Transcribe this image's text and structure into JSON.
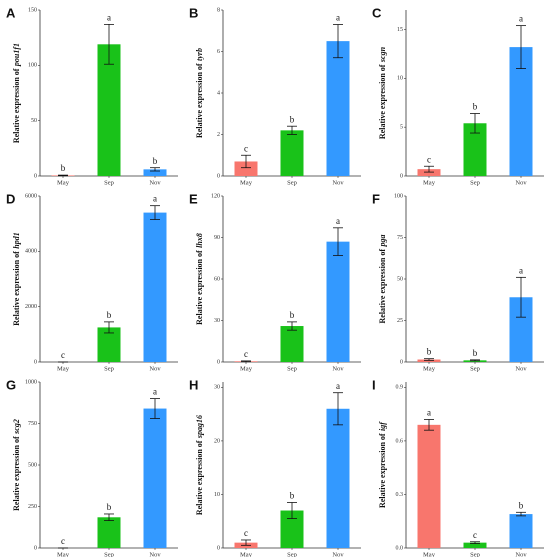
{
  "chart_data": [
    {
      "type": "bar",
      "title": "A",
      "ylabel": {
        "text": "Relative expression of",
        "gene": "pou1f1"
      },
      "categories": [
        "May",
        "Sep",
        "Nov"
      ],
      "values": [
        0.5,
        119,
        6
      ],
      "errors": [
        0.3,
        18,
        1.5
      ],
      "labels": [
        "b",
        "a",
        "b"
      ],
      "colors": [
        "#f8766d",
        "#19c219",
        "#3399ff"
      ],
      "ylim": [
        0,
        150
      ],
      "yticks": [
        0,
        50,
        100,
        150
      ]
    },
    {
      "type": "bar",
      "title": "B",
      "ylabel": {
        "text": "Relative expression of",
        "gene": "tyrb"
      },
      "categories": [
        "May",
        "Sep",
        "Nov"
      ],
      "values": [
        0.7,
        2.2,
        6.5
      ],
      "errors": [
        0.3,
        0.2,
        0.8
      ],
      "labels": [
        "c",
        "b",
        "a"
      ],
      "colors": [
        "#f8766d",
        "#19c219",
        "#3399ff"
      ],
      "ylim": [
        0,
        8
      ],
      "yticks": [
        0,
        2,
        4,
        6,
        8
      ]
    },
    {
      "type": "bar",
      "title": "C",
      "ylabel": {
        "text": "Relative expression of",
        "gene": "scgn"
      },
      "categories": [
        "May",
        "Sep",
        "Nov"
      ],
      "values": [
        0.7,
        5.4,
        13.2
      ],
      "errors": [
        0.3,
        1.0,
        2.2
      ],
      "labels": [
        "c",
        "b",
        "a"
      ],
      "colors": [
        "#f8766d",
        "#19c219",
        "#3399ff"
      ],
      "ylim": [
        0,
        17
      ],
      "yticks": [
        0,
        5,
        10,
        15
      ]
    },
    {
      "type": "bar",
      "title": "D",
      "ylabel": {
        "text": "Relative expression of",
        "gene": "hpd1"
      },
      "categories": [
        "May",
        "Sep",
        "Nov"
      ],
      "values": [
        0,
        1250,
        5400
      ],
      "errors": [
        0,
        200,
        250
      ],
      "labels": [
        "c",
        "b",
        "a"
      ],
      "colors": [
        "#f8766d",
        "#19c219",
        "#3399ff"
      ],
      "ylim": [
        0,
        6000
      ],
      "yticks": [
        0,
        2000,
        4000,
        6000
      ]
    },
    {
      "type": "bar",
      "title": "E",
      "ylabel": {
        "text": "Relative expression of",
        "gene": "lhx8"
      },
      "categories": [
        "May",
        "Sep",
        "Nov"
      ],
      "values": [
        0.5,
        26,
        87
      ],
      "errors": [
        0.3,
        3,
        10
      ],
      "labels": [
        "c",
        "b",
        "a"
      ],
      "colors": [
        "#f8766d",
        "#19c219",
        "#3399ff"
      ],
      "ylim": [
        0,
        120
      ],
      "yticks": [
        0,
        30,
        60,
        90,
        120
      ]
    },
    {
      "type": "bar",
      "title": "F",
      "ylabel": {
        "text": "Relative expression of",
        "gene": "pga"
      },
      "categories": [
        "May",
        "Sep",
        "Nov"
      ],
      "values": [
        1.5,
        1,
        39
      ],
      "errors": [
        0.5,
        0.3,
        12
      ],
      "labels": [
        "b",
        "b",
        "a"
      ],
      "colors": [
        "#f8766d",
        "#19c219",
        "#3399ff"
      ],
      "ylim": [
        0,
        100
      ],
      "yticks": [
        0,
        25,
        50,
        75,
        100
      ]
    },
    {
      "type": "bar",
      "title": "G",
      "ylabel": {
        "text": "Relative expression of",
        "gene": "scg2"
      },
      "categories": [
        "May",
        "Sep",
        "Nov"
      ],
      "values": [
        0,
        185,
        840
      ],
      "errors": [
        0,
        20,
        60
      ],
      "labels": [
        "c",
        "b",
        "a"
      ],
      "colors": [
        "#f8766d",
        "#19c219",
        "#3399ff"
      ],
      "ylim": [
        0,
        1000
      ],
      "yticks": [
        0,
        250,
        500,
        750,
        1000
      ]
    },
    {
      "type": "bar",
      "title": "H",
      "ylabel": {
        "text": "Relative expression of",
        "gene": "spag16"
      },
      "categories": [
        "May",
        "Sep",
        "Nov"
      ],
      "values": [
        1,
        7,
        26
      ],
      "errors": [
        0.5,
        1.5,
        3
      ],
      "labels": [
        "c",
        "b",
        "a"
      ],
      "colors": [
        "#f8766d",
        "#19c219",
        "#3399ff"
      ],
      "ylim": [
        0,
        31
      ],
      "yticks": [
        0,
        10,
        20,
        30
      ]
    },
    {
      "type": "bar",
      "title": "I",
      "ylabel": {
        "text": "Relative expression of",
        "gene": "igf"
      },
      "categories": [
        "May",
        "Sep",
        "Nov"
      ],
      "values": [
        0.69,
        0.03,
        0.19
      ],
      "errors": [
        0.03,
        0.005,
        0.01
      ],
      "labels": [
        "a",
        "c",
        "b"
      ],
      "colors": [
        "#f8766d",
        "#19c219",
        "#3399ff"
      ],
      "ylim": [
        0,
        0.93
      ],
      "yticks": [
        {
          "value": 0,
          "label": "0.0"
        },
        {
          "value": 0.3,
          "label": "0.3"
        },
        {
          "value": 0.6,
          "label": "0.6"
        },
        {
          "value": 0.9,
          "label": "0.9"
        }
      ]
    }
  ]
}
